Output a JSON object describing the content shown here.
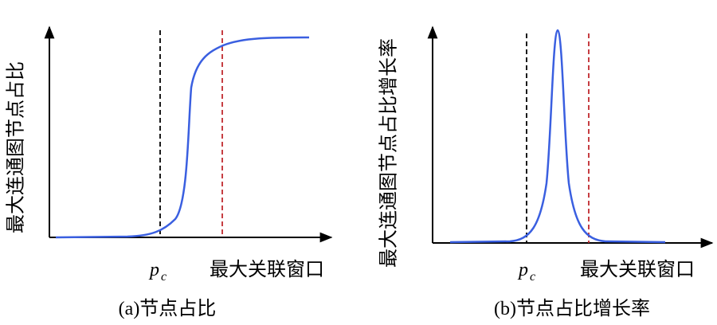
{
  "panels": [
    {
      "y_label": "最大连通图节点占比",
      "threshold_label": {
        "main": "p",
        "sub": "c"
      },
      "x_label": "最大关联窗口",
      "caption": "(a)节点占比"
    },
    {
      "y_label": "最大连通图节点占比增长率",
      "threshold_label": {
        "main": "p",
        "sub": "c"
      },
      "x_label": "最大关联窗口",
      "caption": "(b)节点占比增长率"
    }
  ]
}
